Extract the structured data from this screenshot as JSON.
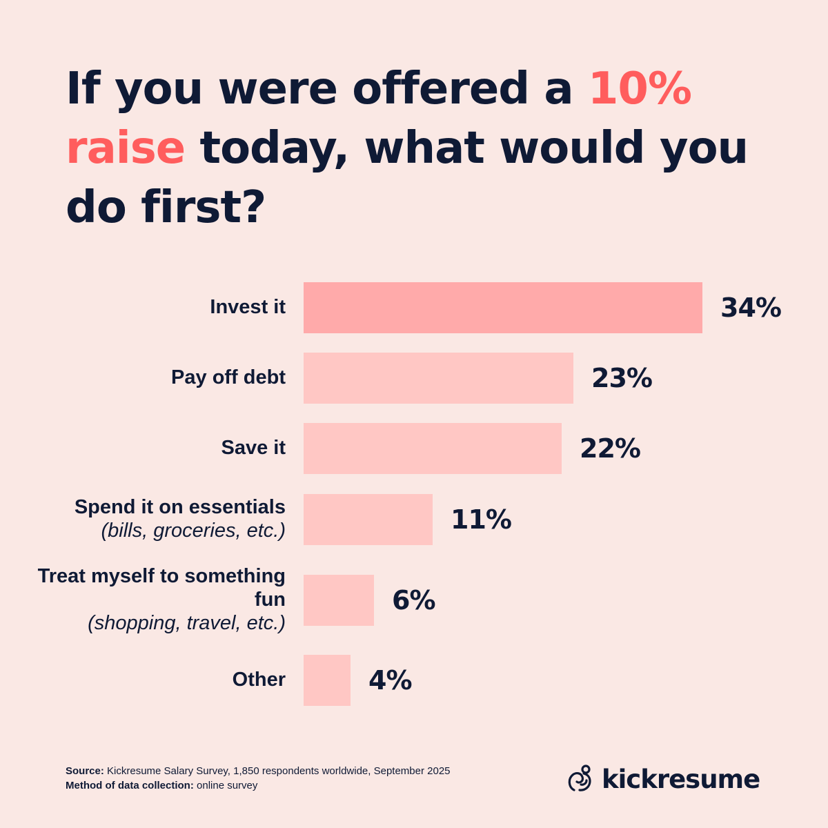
{
  "headline": {
    "part1": "If you were offered a ",
    "accent1": "10%",
    "accent2": "raise",
    "part2": " today, what would you do first?"
  },
  "chart_data": {
    "type": "bar",
    "orientation": "horizontal",
    "categories": [
      "Invest it",
      "Pay off debt",
      "Save it",
      "Spend it on essentials (bills, groceries, etc.)",
      "Treat myself to something fun (shopping, travel, etc.)",
      "Other"
    ],
    "labels": [
      {
        "main": "Invest it",
        "sub": ""
      },
      {
        "main": "Pay off debt",
        "sub": ""
      },
      {
        "main": "Save it",
        "sub": ""
      },
      {
        "main": "Spend it on essentials",
        "sub": "(bills, groceries, etc.)"
      },
      {
        "main": "Treat myself to something fun",
        "sub": "(shopping, travel, etc.)"
      },
      {
        "main": "Other",
        "sub": ""
      }
    ],
    "values": [
      34,
      23,
      22,
      11,
      6,
      4
    ],
    "value_labels": [
      "34%",
      "23%",
      "22%",
      "11%",
      "6%",
      "4%"
    ],
    "unit": "%",
    "grid": false,
    "legend": "none",
    "colors": {
      "highlight": "#ffaaaa",
      "bar": "#ffc7c4"
    }
  },
  "footer": {
    "source_label": "Source:",
    "source_text": " Kickresume Salary Survey, 1,850 respondents worldwide, September 2025",
    "method_label": "Method of data collection:",
    "method_text": " online survey"
  },
  "brand": {
    "name": "kickresume",
    "icon": "kickresume-logo-icon"
  },
  "colors": {
    "background": "#fae8e4",
    "text": "#0f1a35",
    "accent": "#ff5d5d"
  }
}
